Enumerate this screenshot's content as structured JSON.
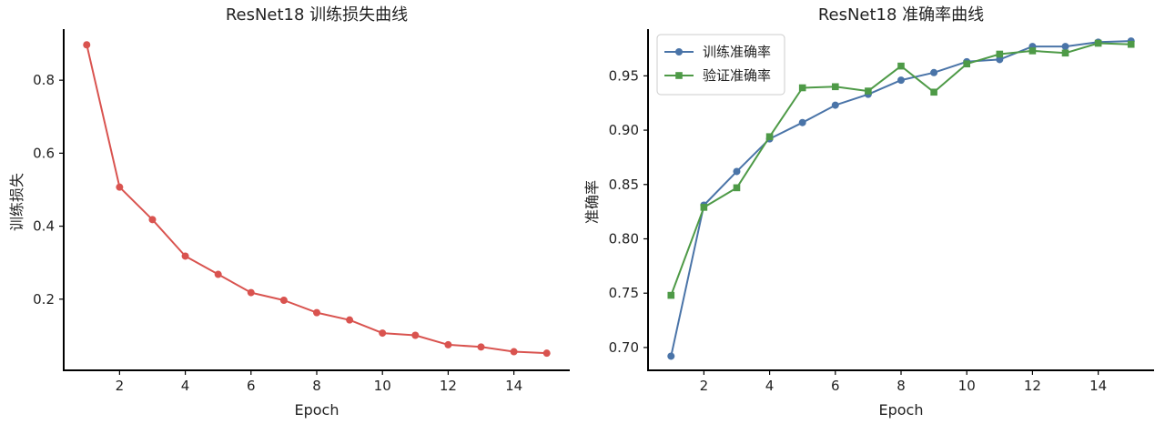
{
  "chart_data": [
    {
      "type": "line",
      "title": "ResNet18 训练损失曲线",
      "xlabel": "Epoch",
      "ylabel": "训练损失",
      "x": [
        1,
        2,
        3,
        4,
        5,
        6,
        7,
        8,
        9,
        10,
        11,
        12,
        13,
        14,
        15
      ],
      "xticks": [
        2,
        4,
        6,
        8,
        10,
        12,
        14
      ],
      "yticks": [
        0.2,
        0.4,
        0.6,
        0.8
      ],
      "xlim": [
        0.3,
        15.7
      ],
      "ylim": [
        0.005,
        0.94
      ],
      "grid": false,
      "series": [
        {
          "color": "#d9534f",
          "marker": "circle",
          "values": [
            0.897,
            0.507,
            0.418,
            0.318,
            0.268,
            0.218,
            0.197,
            0.163,
            0.143,
            0.107,
            0.101,
            0.075,
            0.069,
            0.056,
            0.052
          ]
        }
      ]
    },
    {
      "type": "line",
      "title": "ResNet18 准确率曲线",
      "xlabel": "Epoch",
      "ylabel": "准确率",
      "x": [
        1,
        2,
        3,
        4,
        5,
        6,
        7,
        8,
        9,
        10,
        11,
        12,
        13,
        14,
        15
      ],
      "xticks": [
        2,
        4,
        6,
        8,
        10,
        12,
        14
      ],
      "yticks": [
        0.7,
        0.75,
        0.8,
        0.85,
        0.9,
        0.95
      ],
      "xlim": [
        0.3,
        15.7
      ],
      "ylim": [
        0.679,
        0.993
      ],
      "grid": false,
      "legend": "top-left",
      "series": [
        {
          "name": "训练准确率",
          "color": "#4a74a8",
          "marker": "circle",
          "values": [
            0.692,
            0.831,
            0.862,
            0.892,
            0.907,
            0.923,
            0.933,
            0.946,
            0.953,
            0.963,
            0.965,
            0.977,
            0.977,
            0.981,
            0.982
          ]
        },
        {
          "name": "验证准确率",
          "color": "#4e9a47",
          "marker": "square",
          "values": [
            0.748,
            0.829,
            0.847,
            0.894,
            0.939,
            0.94,
            0.936,
            0.959,
            0.935,
            0.961,
            0.97,
            0.973,
            0.971,
            0.98,
            0.979
          ]
        }
      ]
    }
  ]
}
